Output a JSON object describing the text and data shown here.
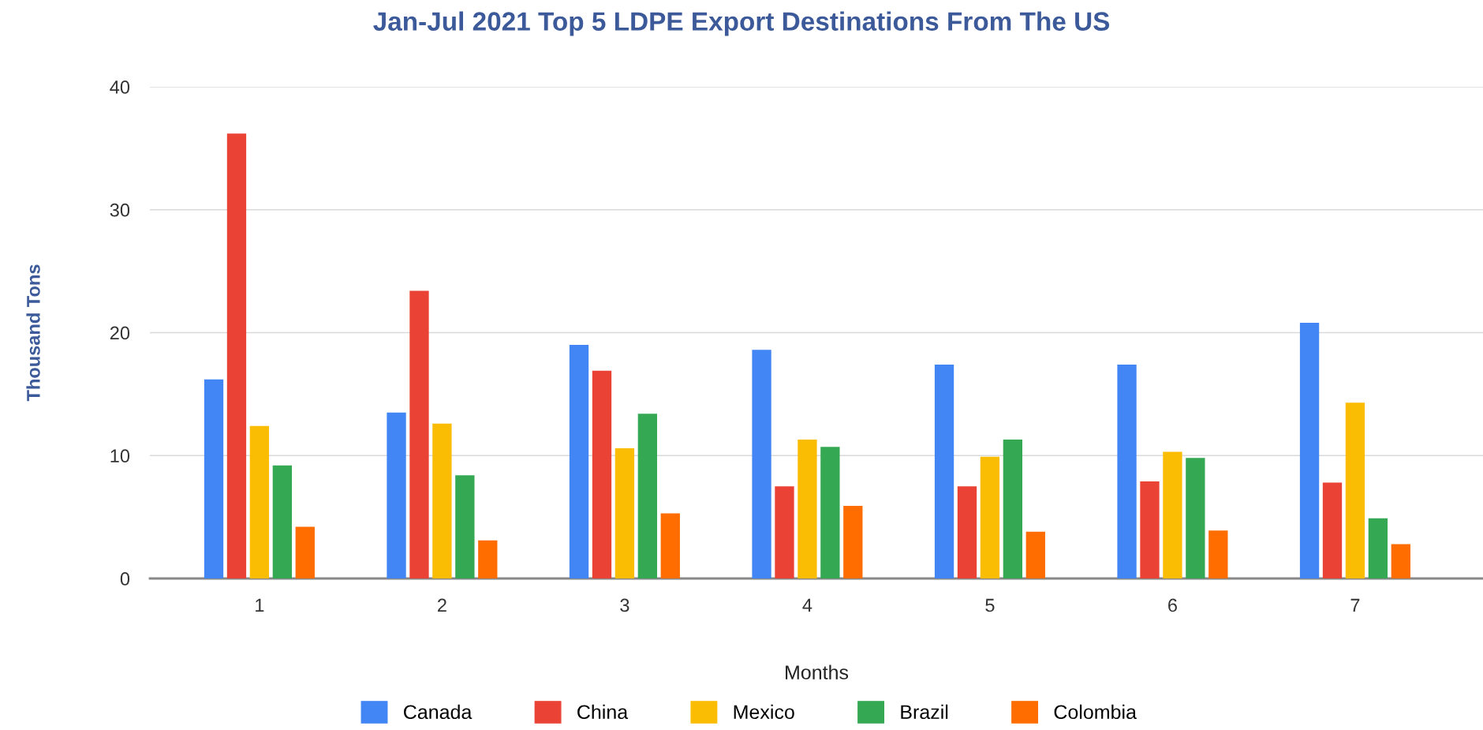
{
  "chart_data": {
    "type": "bar",
    "title": "Jan-Jul 2021 Top 5 LDPE Export Destinations From The US",
    "xlabel": "Months",
    "ylabel": "Thousand Tons",
    "categories": [
      "1",
      "2",
      "3",
      "4",
      "5",
      "6",
      "7"
    ],
    "series": [
      {
        "name": "Canada",
        "color": "#4285f4",
        "values": [
          16.2,
          13.5,
          19.0,
          18.6,
          17.4,
          17.4,
          20.8
        ]
      },
      {
        "name": "China",
        "color": "#ea4335",
        "values": [
          36.2,
          23.4,
          16.9,
          7.5,
          7.5,
          7.9,
          7.8
        ]
      },
      {
        "name": "Mexico",
        "color": "#fbbc04",
        "values": [
          12.4,
          12.6,
          10.6,
          11.3,
          9.9,
          10.3,
          14.3
        ]
      },
      {
        "name": "Brazil",
        "color": "#34a853",
        "values": [
          9.2,
          8.4,
          13.4,
          10.7,
          11.3,
          9.8,
          4.9
        ]
      },
      {
        "name": "Colombia",
        "color": "#ff6d01",
        "values": [
          4.2,
          3.1,
          5.3,
          5.9,
          3.8,
          3.9,
          2.8
        ]
      }
    ],
    "ylim": [
      0,
      40
    ],
    "yticks": [
      0,
      10,
      20,
      30,
      40
    ],
    "grid": "y",
    "legend": "bottom"
  }
}
